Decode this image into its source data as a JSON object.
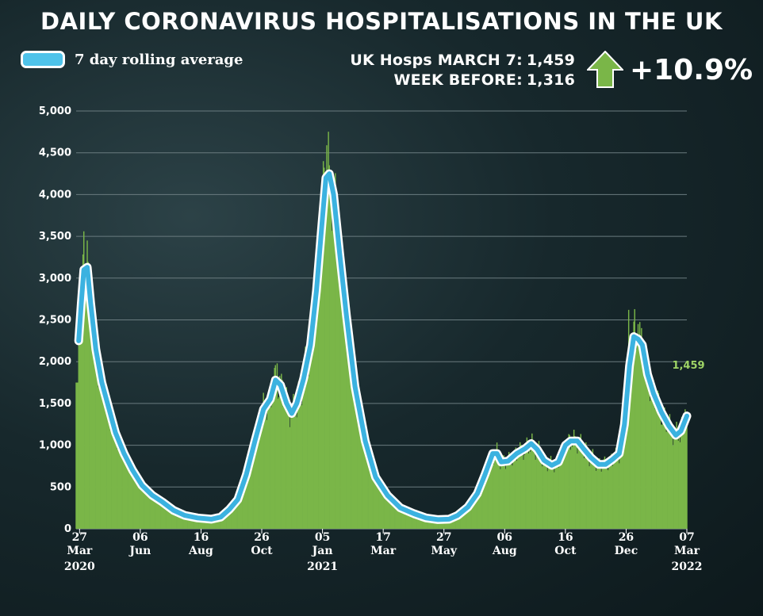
{
  "title": "DAILY CORONAVIRUS HOSPITALISATIONS IN THE UK",
  "legend": {
    "label": "7 day rolling average",
    "color": "#4ec3ea"
  },
  "stats": {
    "latest_label": "UK Hosps MARCH 7:",
    "latest_value": "1,459",
    "previous_label": "WEEK BEFORE:",
    "previous_value": "1,316",
    "change": "+10.9%",
    "change_icon": "arrow-up-icon",
    "change_color": "#7ab648"
  },
  "colors": {
    "bars": "#7ab648",
    "line": "#3bb2e0",
    "line_outline": "#ffffff",
    "annotation": "#9fd466",
    "grid": "#6a7b7f"
  },
  "chart_data": {
    "type": "bar",
    "title": "DAILY CORONAVIRUS HOSPITALISATIONS IN THE UK",
    "xlabel": "",
    "ylabel": "",
    "ylim": [
      0,
      5000
    ],
    "grid": true,
    "legend_position": "top-left",
    "y_ticks": [
      0,
      500,
      1000,
      1500,
      2000,
      2500,
      3000,
      3500,
      4000,
      4500,
      5000
    ],
    "y_tick_labels": [
      "0",
      "500",
      "1,000",
      "1,500",
      "2,000",
      "2,500",
      "3,000",
      "3,500",
      "4,000",
      "4,500",
      "5,000"
    ],
    "x_ticks": [
      {
        "date": "2020-03-27",
        "day": "27",
        "month": "Mar",
        "year": "2020"
      },
      {
        "date": "2020-06-06",
        "day": "06",
        "month": "Jun",
        "year": ""
      },
      {
        "date": "2020-08-16",
        "day": "16",
        "month": "Aug",
        "year": ""
      },
      {
        "date": "2020-10-26",
        "day": "26",
        "month": "Oct",
        "year": ""
      },
      {
        "date": "2021-01-05",
        "day": "05",
        "month": "Jan",
        "year": "2021"
      },
      {
        "date": "2021-03-17",
        "day": "17",
        "month": "Mar",
        "year": ""
      },
      {
        "date": "2021-05-27",
        "day": "27",
        "month": "May",
        "year": ""
      },
      {
        "date": "2021-08-06",
        "day": "06",
        "month": "Aug",
        "year": ""
      },
      {
        "date": "2021-10-16",
        "day": "16",
        "month": "Oct",
        "year": ""
      },
      {
        "date": "2021-12-26",
        "day": "26",
        "month": "Dec",
        "year": ""
      },
      {
        "date": "2022-03-07",
        "day": "07",
        "month": "Mar",
        "year": "2022"
      }
    ],
    "x_range": [
      "2020-03-23",
      "2022-03-07"
    ],
    "annotation": {
      "date": "2022-03-07",
      "value": 1459,
      "label": "1,459"
    },
    "series": [
      {
        "name": "7 day rolling average",
        "type": "line",
        "points": [
          [
            "2020-03-26",
            2250
          ],
          [
            "2020-03-29",
            2700
          ],
          [
            "2020-04-01",
            3100
          ],
          [
            "2020-04-05",
            3130
          ],
          [
            "2020-04-09",
            2700
          ],
          [
            "2020-04-15",
            2150
          ],
          [
            "2020-04-22",
            1750
          ],
          [
            "2020-04-30",
            1450
          ],
          [
            "2020-05-08",
            1150
          ],
          [
            "2020-05-18",
            900
          ],
          [
            "2020-05-28",
            700
          ],
          [
            "2020-06-08",
            520
          ],
          [
            "2020-06-20",
            400
          ],
          [
            "2020-07-02",
            320
          ],
          [
            "2020-07-15",
            220
          ],
          [
            "2020-07-28",
            160
          ],
          [
            "2020-08-12",
            130
          ],
          [
            "2020-08-28",
            115
          ],
          [
            "2020-09-08",
            140
          ],
          [
            "2020-09-18",
            230
          ],
          [
            "2020-09-28",
            350
          ],
          [
            "2020-10-08",
            650
          ],
          [
            "2020-10-18",
            1050
          ],
          [
            "2020-10-28",
            1430
          ],
          [
            "2020-11-05",
            1550
          ],
          [
            "2020-11-11",
            1780
          ],
          [
            "2020-11-17",
            1720
          ],
          [
            "2020-11-24",
            1500
          ],
          [
            "2020-11-30",
            1380
          ],
          [
            "2020-12-06",
            1500
          ],
          [
            "2020-12-14",
            1800
          ],
          [
            "2020-12-22",
            2200
          ],
          [
            "2020-12-29",
            2850
          ],
          [
            "2021-01-04",
            3600
          ],
          [
            "2021-01-09",
            4200
          ],
          [
            "2021-01-13",
            4250
          ],
          [
            "2021-01-18",
            4000
          ],
          [
            "2021-01-25",
            3300
          ],
          [
            "2021-02-02",
            2550
          ],
          [
            "2021-02-12",
            1700
          ],
          [
            "2021-02-24",
            1050
          ],
          [
            "2021-03-08",
            620
          ],
          [
            "2021-03-22",
            400
          ],
          [
            "2021-04-06",
            250
          ],
          [
            "2021-04-22",
            180
          ],
          [
            "2021-05-06",
            130
          ],
          [
            "2021-05-20",
            110
          ],
          [
            "2021-06-02",
            115
          ],
          [
            "2021-06-12",
            160
          ],
          [
            "2021-06-24",
            260
          ],
          [
            "2021-07-05",
            420
          ],
          [
            "2021-07-14",
            650
          ],
          [
            "2021-07-23",
            900
          ],
          [
            "2021-07-28",
            900
          ],
          [
            "2021-08-02",
            800
          ],
          [
            "2021-08-10",
            810
          ],
          [
            "2021-08-20",
            900
          ],
          [
            "2021-08-30",
            960
          ],
          [
            "2021-09-06",
            1020
          ],
          [
            "2021-09-13",
            950
          ],
          [
            "2021-09-21",
            820
          ],
          [
            "2021-09-30",
            760
          ],
          [
            "2021-10-08",
            800
          ],
          [
            "2021-10-16",
            1000
          ],
          [
            "2021-10-22",
            1050
          ],
          [
            "2021-10-30",
            1050
          ],
          [
            "2021-11-06",
            960
          ],
          [
            "2021-11-15",
            850
          ],
          [
            "2021-11-24",
            770
          ],
          [
            "2021-12-02",
            770
          ],
          [
            "2021-12-10",
            830
          ],
          [
            "2021-12-18",
            900
          ],
          [
            "2021-12-24",
            1250
          ],
          [
            "2021-12-30",
            1950
          ],
          [
            "2022-01-04",
            2300
          ],
          [
            "2022-01-09",
            2270
          ],
          [
            "2022-01-14",
            2200
          ],
          [
            "2022-01-20",
            1850
          ],
          [
            "2022-01-27",
            1620
          ],
          [
            "2022-02-05",
            1400
          ],
          [
            "2022-02-14",
            1230
          ],
          [
            "2022-02-22",
            1120
          ],
          [
            "2022-02-28",
            1170
          ],
          [
            "2022-03-07",
            1350
          ]
        ]
      },
      {
        "name": "",
        "type": "bar",
        "note_daily_from_spikes": true,
        "spikes": [
          [
            "2020-03-27",
            2600
          ],
          [
            "2020-04-01",
            3560
          ],
          [
            "2020-04-05",
            3450
          ],
          [
            "2020-11-13",
            1980
          ],
          [
            "2021-01-06",
            4400
          ],
          [
            "2021-01-10",
            4590
          ],
          [
            "2021-01-13",
            4350
          ],
          [
            "2021-12-29",
            2620
          ],
          [
            "2022-01-04",
            2480
          ],
          [
            "2022-01-09",
            2450
          ],
          [
            "2022-03-05",
            1430
          ]
        ]
      }
    ]
  }
}
